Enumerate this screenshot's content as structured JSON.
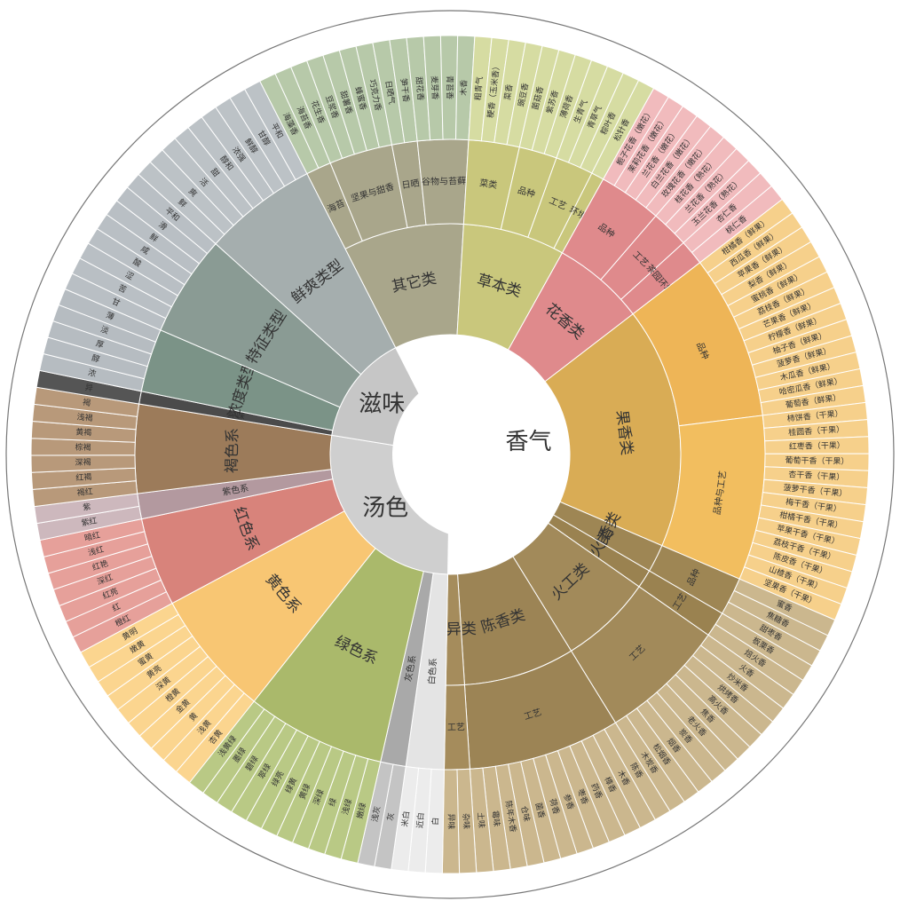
{
  "chart_data": {
    "type": "sunburst",
    "nodes": [
      {
        "label": "香气",
        "color": "#ffffff",
        "children": [
          {
            "label": "其它类",
            "color": "#a9a68b",
            "leafColor": "#b7c9a9",
            "children": [
              {
                "label": "海苔",
                "leaves": [
                  "海藻香",
                  "海苔香"
                ]
              },
              {
                "label": "坚果与甜香",
                "leaves": [
                  "花生香",
                  "豆浆香",
                  "甜薯香",
                  "蜂蜜香",
                  "巧克力香"
                ]
              },
              {
                "label": "日晒",
                "leaves": [
                  "日晒气",
                  "笋干香"
                ]
              },
              {
                "label": "谷物与苔藓",
                "leaves": [
                  "甜花香",
                  "麦芽香",
                  "青苔香",
                  "木香"
                ]
              }
            ]
          },
          {
            "label": "草本类",
            "color": "#c9c77c",
            "leafColor": "#d6dca2",
            "children": [
              {
                "label": "菜类",
                "leaves": [
                  "粗青气",
                  "粳香（玉米香）",
                  "菜香",
                  "豌豆香"
                ]
              },
              {
                "label": "品种",
                "leaves": [
                  "菌菇香",
                  "紫苏香",
                  "薄荷香"
                ]
              },
              {
                "label": "工艺",
                "leaves": [
                  "生青气",
                  "青草气",
                  "粽叶香"
                ]
              },
              {
                "label": "环境",
                "leaves": [
                  "松针香"
                ]
              }
            ]
          },
          {
            "label": "花香类",
            "color": "#df8a8c",
            "leafColor": "#f1bbbd",
            "children": [
              {
                "label": "品种",
                "leaves": [
                  "栀子花香（嫩花）",
                  "茉莉花香（嫩花）",
                  "兰花香（嫩花）",
                  "白兰花香（嫩花）",
                  "玫瑰花香（嫩花）"
                ]
              },
              {
                "label": "工艺",
                "leaves": [
                  "桂花香（熟花）",
                  "兰花香（熟花）",
                  "玉兰花香（熟花）"
                ]
              },
              {
                "label": "茶园环境",
                "leaves": [
                  "杏仁香",
                  "桃仁香"
                ]
              }
            ]
          },
          {
            "label": "果香类",
            "color": "#d9ac55",
            "leafColor": "#f6d08b",
            "children": [
              {
                "label": "品种",
                "color": "#eeb557",
                "leaves": [
                  "柑橘香（鲜果）",
                  "西瓜香（鲜果）",
                  "苹果香（鲜果）",
                  "梨香（鲜果）",
                  "蜜桃香（鲜果）",
                  "荔枝香（鲜果）",
                  "芒果香（鲜果）",
                  "柠檬香（鲜果）",
                  "柚子香（鲜果）",
                  "菠萝香（鲜果）",
                  "木瓜香（鲜果）",
                  "哈密瓜香（鲜果）",
                  "葡萄香（鲜果）"
                ]
              },
              {
                "label": "品种与工艺",
                "color": "#f2be5f",
                "leaves": [
                  "柿饼香（干果）",
                  "桂圆香（干果）",
                  "红枣香（干果）",
                  "葡萄干香（干果）",
                  "杏干香（干果）",
                  "菠萝干香（干果）",
                  "梅干香（干果）",
                  "柑橘干香（干果）",
                  "苹果干香（干果）",
                  "荔枝干香（干果）",
                  "陈皮香（干果）",
                  "山楂香（干果）",
                  "坚果香（干果）"
                ]
              }
            ]
          },
          {
            "label": "甜香类",
            "color": "#9e8654",
            "leafColor": "#cbb78e",
            "children": [
              {
                "label": "品种",
                "leaves": [
                  "蜜香",
                  "焦糖香",
                  "甜枣香"
                ]
              }
            ]
          },
          {
            "label": "焙火类",
            "color": "#9a8250",
            "leafColor": "#cbb78e",
            "children": [
              {
                "label": "工艺",
                "leaves": [
                  "板栗香",
                  "焙火香"
                ]
              }
            ]
          },
          {
            "label": "火工类",
            "color": "#a28a5a",
            "leafColor": "#cbb78e",
            "children": [
              {
                "label": "工艺",
                "leaves": [
                  "火香",
                  "炒米香",
                  "烘烤香",
                  "高火香",
                  "焦香",
                  "老火香",
                  "炭香",
                  "烟香",
                  "松烟香",
                  "木炭香"
                ]
              }
            ]
          },
          {
            "label": "陈香类",
            "color": "#9c8455",
            "leafColor": "#cbb78e",
            "children": [
              {
                "label": "工艺",
                "leaves": [
                  "陈香",
                  "木香",
                  "樟香",
                  "药香",
                  "枣香",
                  "参香",
                  "荷香",
                  "菌香",
                  "仓味",
                  "陈年木香",
                  "霉味",
                  "土味"
                ]
              }
            ]
          },
          {
            "label": "杂异类",
            "color": "#a58c5c",
            "leafColor": "#cbb78e",
            "children": [
              {
                "label": "工艺",
                "leaves": [
                  "杂味",
                  "异味"
                ]
              }
            ]
          }
        ]
      },
      {
        "label": "汤色",
        "color": "#cfcfcf",
        "children": [
          {
            "label": "白色系",
            "color": "#e4e4e4",
            "leafColor": "#ececec",
            "leaves": [
              "白",
              "近白",
              "米白"
            ]
          },
          {
            "label": "灰色系",
            "color": "#a9a9a9",
            "leafColor": "#c4c4c4",
            "leaves": [
              "灰",
              "浅灰"
            ]
          },
          {
            "label": "绿色系",
            "color": "#aab96b",
            "leafColor": "#b9c985",
            "leaves": [
              "嫩绿",
              "浅绿",
              "绿",
              "深绿",
              "黄绿",
              "绿黄",
              "绿亮",
              "翠绿",
              "碧绿",
              "墨绿",
              "浅黄绿"
            ]
          },
          {
            "label": "黄色系",
            "color": "#f8c673",
            "leafColor": "#fbd58f",
            "leaves": [
              "杏黄",
              "浅黄",
              "黄",
              "金黄",
              "橙黄",
              "深黄",
              "黄亮",
              "蜜黄",
              "嫩黄",
              "黄明"
            ]
          },
          {
            "label": "红色系",
            "color": "#d8837b",
            "leafColor": "#e6a09a",
            "leaves": [
              "橙红",
              "红",
              "红亮",
              "深红",
              "红艳",
              "浅红",
              "暗红"
            ]
          },
          {
            "label": "紫色系",
            "color": "#b3999f",
            "leafColor": "#cdb8bd",
            "leaves": [
              "紫红",
              "紫"
            ]
          },
          {
            "label": "褐色系",
            "color": "#9c7b5a",
            "leafColor": "#b8997a",
            "leaves": [
              "褐红",
              "红褐",
              "深褐",
              "棕褐",
              "黄褐",
              "浅褐",
              "褐"
            ]
          }
        ]
      },
      {
        "label": "滋味",
        "color": "#c6c6c6",
        "children": [
          {
            "label": "异味",
            "color": "#4b4b4b",
            "leafColor": "#555555",
            "leaves": [
              "异"
            ]
          },
          {
            "label": "浓度类型",
            "color": "#7b9387",
            "leafColor": "#b6bcc1",
            "leaves": [
              "浓",
              "醇",
              "厚",
              "淡",
              "薄"
            ]
          },
          {
            "label": "特征类型",
            "color": "#8a9b94",
            "leafColor": "#b9bfc4",
            "leaves": [
              "甘",
              "苦",
              "涩",
              "酸",
              "咸",
              "鲜",
              "滑",
              "平和"
            ]
          },
          {
            "label": "鲜爽类型",
            "color": "#a5aeae",
            "leafColor": "#bcc2c6",
            "leaves": [
              "鲜",
              "爽",
              "活",
              "甜",
              "醇和",
              "浓强",
              "鲜醇",
              "甘醇",
              "平和"
            ]
          }
        ]
      }
    ]
  }
}
